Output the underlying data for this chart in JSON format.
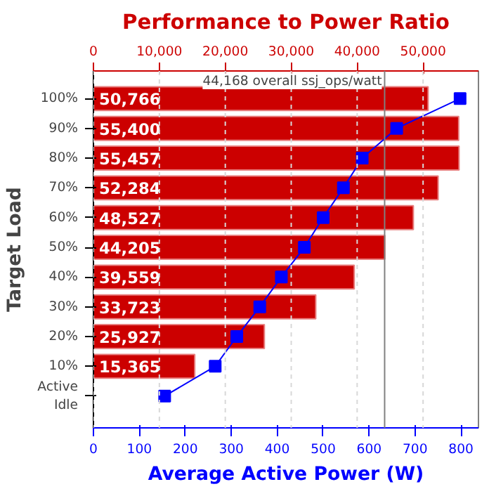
{
  "chart_data": {
    "type": "bar",
    "orientation": "horizontal",
    "title": "Performance to Power Ratio",
    "xlabel": "Average Active Power (W)",
    "ylabel": "Target Load",
    "categories": [
      "100%",
      "90%",
      "80%",
      "70%",
      "60%",
      "50%",
      "40%",
      "30%",
      "20%",
      "10%",
      "Active\nIdle"
    ],
    "series": [
      {
        "axis": "x2",
        "color": "#cc0000",
        "values": [
          50766,
          55400,
          55457,
          52284,
          48527,
          44205,
          39559,
          33723,
          25927,
          15365,
          null
        ],
        "value_labels": [
          "50,766",
          "55,400",
          "55,457",
          "52,284",
          "48,527",
          "44,205",
          "39,559",
          "33,723",
          "25,927",
          "15,365",
          null
        ]
      },
      {
        "type": "line",
        "color": "#0000ff",
        "marker": "square",
        "values": [
          798,
          660,
          585,
          544,
          500,
          459,
          409,
          362,
          312,
          265,
          155
        ]
      }
    ],
    "xlim": [
      0,
      838
    ],
    "xticks": [
      0,
      100,
      200,
      300,
      400,
      500,
      600,
      700,
      800
    ],
    "x2lim": [
      0,
      58400
    ],
    "x2ticks": [
      0,
      {
        "value": 10000,
        "label": "10,000"
      },
      {
        "value": 20000,
        "label": "20,000"
      },
      {
        "value": 30000,
        "label": "30,000"
      },
      {
        "value": 40000,
        "label": "40,000"
      },
      {
        "value": 50000,
        "label": "50,000"
      }
    ],
    "ref_lines": [
      {
        "axis": "x2",
        "value": 44168,
        "label": "44,168 overall ssj_ops/watt",
        "color": "#808080"
      }
    ],
    "grid": "x"
  }
}
